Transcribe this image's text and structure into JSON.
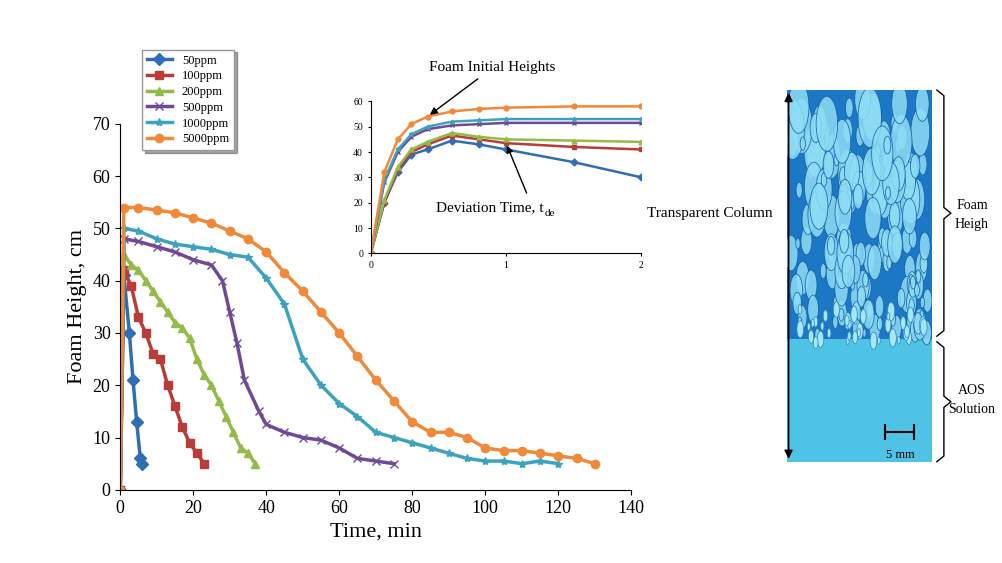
{
  "chart_data": [
    {
      "type": "line",
      "x_label": "Time, min",
      "y_label": "Foam Height, cm",
      "xlim": [
        0,
        140
      ],
      "xticks": [
        0,
        20,
        40,
        60,
        80,
        100,
        120,
        140
      ],
      "ylim": [
        0,
        70
      ],
      "yticks": [
        0,
        10,
        20,
        30,
        40,
        50,
        60,
        70
      ],
      "grid": false,
      "legend": "upper left",
      "series": [
        {
          "name": "50ppm",
          "color": "#2f6eb5",
          "marker": "diamond",
          "x": [
            0,
            1,
            2.5,
            3.5,
            4.5,
            5.5,
            6
          ],
          "values": [
            0,
            41,
            30,
            21,
            13,
            6,
            5
          ]
        },
        {
          "name": "100ppm",
          "color": "#b83c3a",
          "marker": "square",
          "x": [
            0,
            1,
            3,
            5,
            7,
            9,
            11,
            13,
            15,
            17,
            19,
            21,
            23
          ],
          "values": [
            0,
            42,
            39,
            33,
            30,
            26,
            25,
            20,
            16,
            12,
            9,
            7,
            5
          ]
        },
        {
          "name": "200ppm",
          "color": "#92bb4a",
          "marker": "triangle",
          "x": [
            0,
            1,
            3,
            5,
            7,
            9,
            11,
            13,
            15,
            17,
            19,
            21,
            23,
            25,
            27,
            29,
            31,
            33,
            35,
            37
          ],
          "values": [
            0,
            45,
            43,
            42,
            40,
            38,
            36,
            34,
            32,
            31,
            29,
            25,
            22,
            20,
            17,
            14,
            11,
            8,
            7,
            5
          ]
        },
        {
          "name": "500ppm",
          "color": "#6f4996",
          "marker": "x",
          "x": [
            0,
            1,
            5,
            10,
            15,
            20,
            25,
            28,
            30,
            32,
            34,
            38,
            40,
            45,
            50,
            55,
            60,
            65,
            70,
            75
          ],
          "values": [
            0,
            48,
            47.5,
            46.5,
            45.5,
            44,
            43,
            40,
            34,
            28,
            21,
            15,
            12.5,
            11,
            10,
            9.5,
            8,
            6,
            5.5,
            5
          ]
        },
        {
          "name": "1000ppm",
          "color": "#3ba3bd",
          "marker": "star",
          "x": [
            0,
            1,
            5,
            10,
            15,
            20,
            25,
            30,
            35,
            40,
            45,
            50,
            55,
            60,
            65,
            70,
            75,
            80,
            85,
            90,
            95,
            100,
            105,
            110,
            115,
            120
          ],
          "values": [
            0,
            50,
            49.5,
            48,
            47,
            46.5,
            46,
            45,
            44.5,
            40.5,
            35.5,
            25,
            20,
            16.5,
            14,
            11,
            10,
            9,
            8,
            7,
            6,
            5.5,
            5.5,
            5,
            5.5,
            5
          ]
        },
        {
          "name": "5000ppm",
          "color": "#f08a3a",
          "marker": "circle",
          "x": [
            0,
            1,
            5,
            10,
            15,
            20,
            25,
            30,
            35,
            40,
            45,
            50,
            55,
            60,
            65,
            70,
            75,
            80,
            85,
            90,
            95,
            100,
            105,
            110,
            115,
            120,
            125,
            130
          ],
          "values": [
            0,
            54,
            54,
            53.5,
            53,
            52,
            51,
            49.5,
            48,
            45.5,
            41.5,
            38,
            34,
            30,
            25.5,
            21,
            17,
            13,
            11,
            11,
            10,
            8,
            7.5,
            7.5,
            7,
            6.5,
            6,
            5
          ]
        }
      ]
    },
    {
      "type": "line",
      "xlim": [
        0,
        2
      ],
      "xticks": [
        0,
        1,
        2
      ],
      "ylim": [
        0,
        60
      ],
      "yticks": [
        0,
        10,
        20,
        30,
        40,
        50,
        60
      ],
      "grid": false,
      "x": [
        0,
        0.1,
        0.2,
        0.3,
        0.42,
        0.6,
        0.8,
        1,
        1.5,
        2
      ],
      "series": [
        {
          "name": "50ppm",
          "color": "#2f6eb5",
          "marker": "diamond",
          "values": [
            0,
            20,
            32,
            39,
            41,
            44.5,
            43,
            41,
            36,
            30
          ]
        },
        {
          "name": "100ppm",
          "color": "#b83c3a",
          "marker": "square",
          "values": [
            0,
            20,
            33,
            40,
            43,
            46.5,
            45,
            43.5,
            42,
            41
          ]
        },
        {
          "name": "200ppm",
          "color": "#92bb4a",
          "marker": "triangle",
          "values": [
            0,
            21,
            34,
            41,
            44,
            47.5,
            46,
            45,
            44.5,
            44
          ]
        },
        {
          "name": "500ppm",
          "color": "#6f4996",
          "marker": "x",
          "values": [
            0,
            28,
            40,
            46,
            49,
            50.5,
            51,
            51.5,
            51.5,
            51.5
          ]
        },
        {
          "name": "1000ppm",
          "color": "#3ba3bd",
          "marker": "star",
          "values": [
            0,
            29,
            41,
            47,
            50,
            52,
            52.5,
            53,
            53,
            53
          ]
        },
        {
          "name": "5000ppm",
          "color": "#f08a3a",
          "marker": "circle",
          "values": [
            0,
            32,
            45,
            51,
            54,
            56,
            57,
            57.5,
            58,
            58
          ]
        }
      ],
      "annotations": [
        {
          "text": "Foam Initial Heights",
          "series": "5000ppm",
          "x": 0.42
        },
        {
          "text": "Deviation Time, t",
          "subscript": "de",
          "series": "100ppm",
          "x": 1
        }
      ]
    }
  ],
  "image": {
    "column": "Transparent Column",
    "foam": "Foam\nHeigh",
    "solution": "AOS\nSolution",
    "scale": "5 mm"
  }
}
